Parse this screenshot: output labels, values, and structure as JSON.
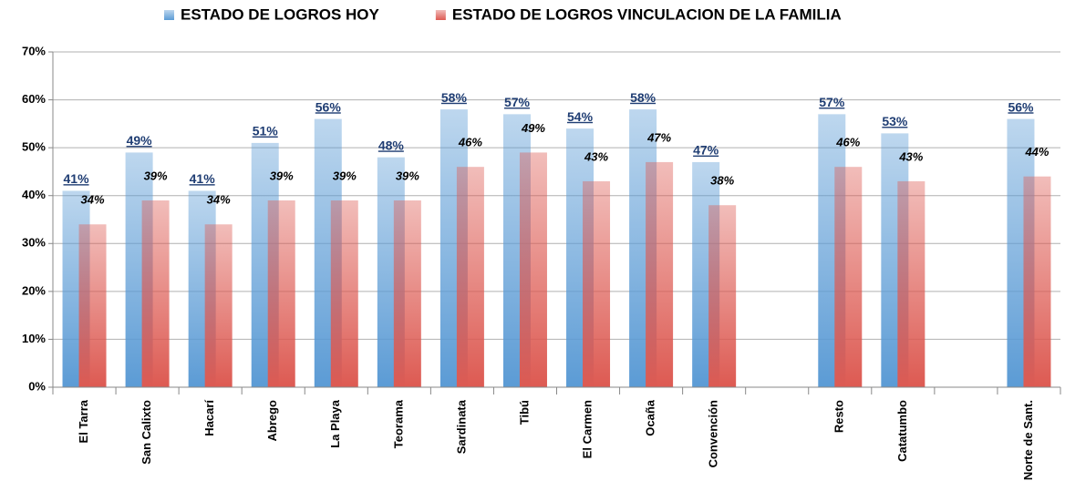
{
  "chart_data": {
    "type": "bar",
    "categories": [
      "El Tarra",
      "San Calixto",
      "Hacarí",
      "Abrego",
      "La Playa",
      "Teorama",
      "Sardinata",
      "Tibú",
      "El Carmen",
      "Ocaña",
      "Convención",
      null,
      "Resto",
      "Catatumbo",
      null,
      "Norte de Sant."
    ],
    "series": [
      {
        "name": "ESTADO DE LOGROS HOY",
        "color": "#5b9bd5",
        "values": [
          41,
          49,
          41,
          51,
          56,
          48,
          58,
          57,
          54,
          58,
          47,
          null,
          57,
          53,
          null,
          56
        ],
        "value_labels": [
          "41%",
          "49%",
          "41%",
          "51%",
          "56%",
          "48%",
          "58%",
          "57%",
          "54%",
          "58%",
          "47%",
          null,
          "57%",
          "53%",
          null,
          "56%"
        ]
      },
      {
        "name": "ESTADO DE LOGROS VINCULACION DE LA FAMILIA",
        "color": "#dd5a52",
        "values": [
          34,
          39,
          34,
          39,
          39,
          39,
          46,
          49,
          43,
          47,
          38,
          null,
          46,
          43,
          null,
          44
        ],
        "value_labels": [
          "34%",
          "39%",
          "34%",
          "39%",
          "39%",
          "39%",
          "46%",
          "49%",
          "43%",
          "47%",
          "38%",
          null,
          "46%",
          "43%",
          null,
          "44%"
        ]
      }
    ],
    "ylim": [
      0,
      70
    ],
    "yticks": [
      {
        "value": 0,
        "label": "0%"
      },
      {
        "value": 10,
        "label": "10%"
      },
      {
        "value": 20,
        "label": "20%"
      },
      {
        "value": 30,
        "label": "30%"
      },
      {
        "value": 40,
        "label": "40%"
      },
      {
        "value": 50,
        "label": "50%"
      },
      {
        "value": 60,
        "label": "60%"
      },
      {
        "value": 70,
        "label": "70%"
      }
    ],
    "grid": true,
    "legend": "top"
  }
}
